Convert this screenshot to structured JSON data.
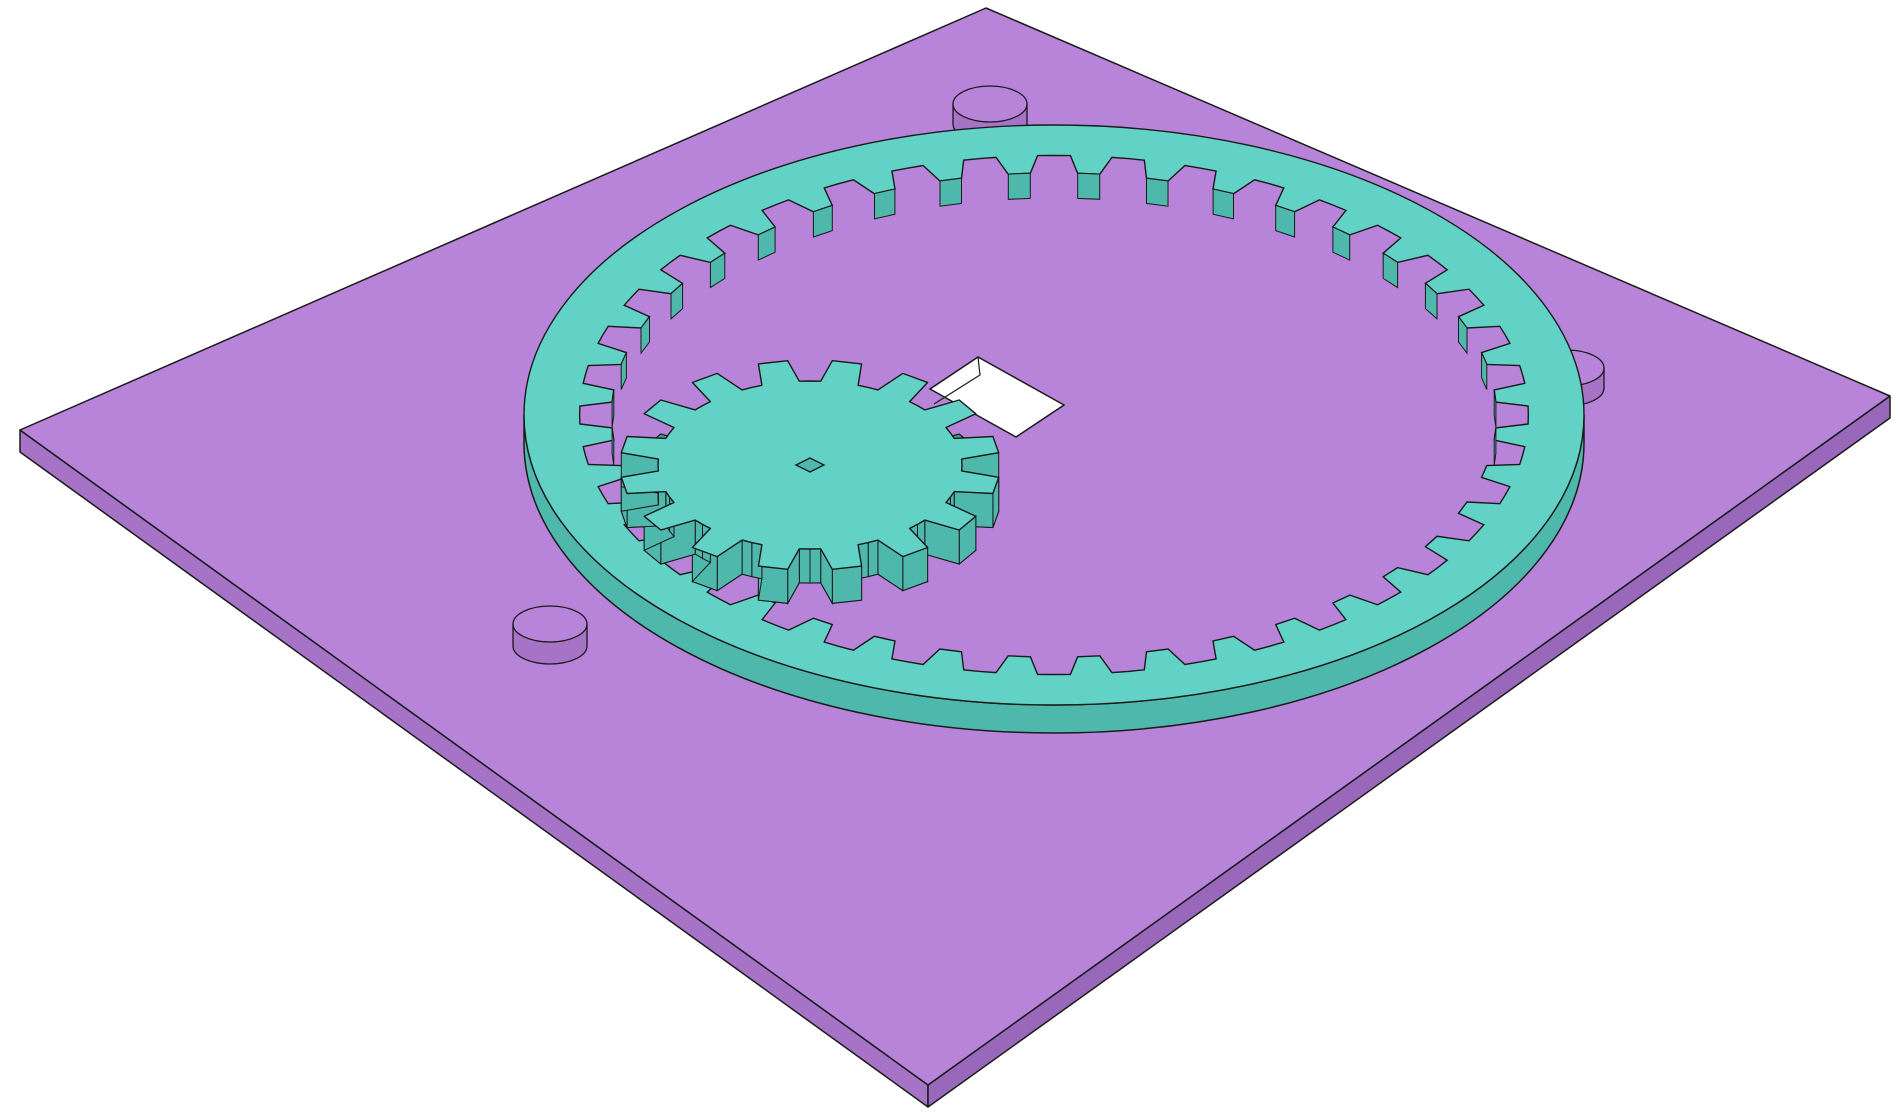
{
  "scene": {
    "description_free": true,
    "colors": {
      "background": "#ffffff",
      "plate_top": "#b784d9",
      "plate_side_front": "#a673c7",
      "plate_side_right": "#9a68bb",
      "gear_top": "#62d1c6",
      "gear_side": "#4fb8ad",
      "gear_side_dark": "#3f9e94",
      "edge": "#1a1a1a",
      "hole": "#ffffff"
    },
    "parts": {
      "ring_gear_teeth": 40,
      "pinion_teeth": 16,
      "pins": 3
    }
  }
}
